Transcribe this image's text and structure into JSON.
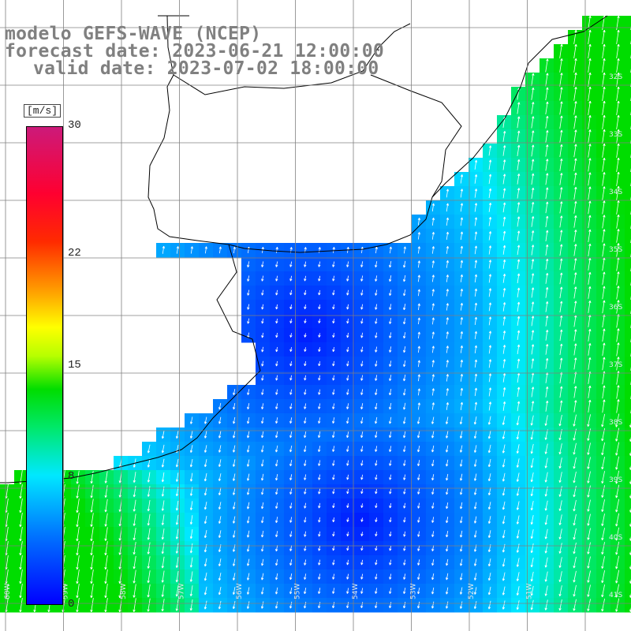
{
  "title": {
    "line1": "modelo GEFS-WAVE (NCEP)",
    "line2": "forecast date: 2023-06-21 12:00:00",
    "line3": "valid date: 2023-07-02 18:00:00"
  },
  "colorbar": {
    "unit": "[m/s]",
    "ticks": [
      {
        "label": "30",
        "value": 30
      },
      {
        "label": "22",
        "value": 22
      },
      {
        "label": "15",
        "value": 15
      },
      {
        "label": "8",
        "value": 8
      },
      {
        "label": "0",
        "value": 0
      }
    ],
    "min": 0,
    "max": 30
  },
  "map": {
    "lat_labels": [
      "32S",
      "33S",
      "34S",
      "35S",
      "36S",
      "37S",
      "38S",
      "39S",
      "40S",
      "41S"
    ],
    "lon_labels": [
      "60W",
      "59W",
      "58W",
      "57W",
      "56W",
      "55W",
      "54W",
      "53W",
      "52W",
      "51W"
    ],
    "colors": {
      "land": "#ffffff",
      "grid": "#808080",
      "coast": "#000000",
      "title": "#808080",
      "arrow": "#ffffff"
    }
  }
}
